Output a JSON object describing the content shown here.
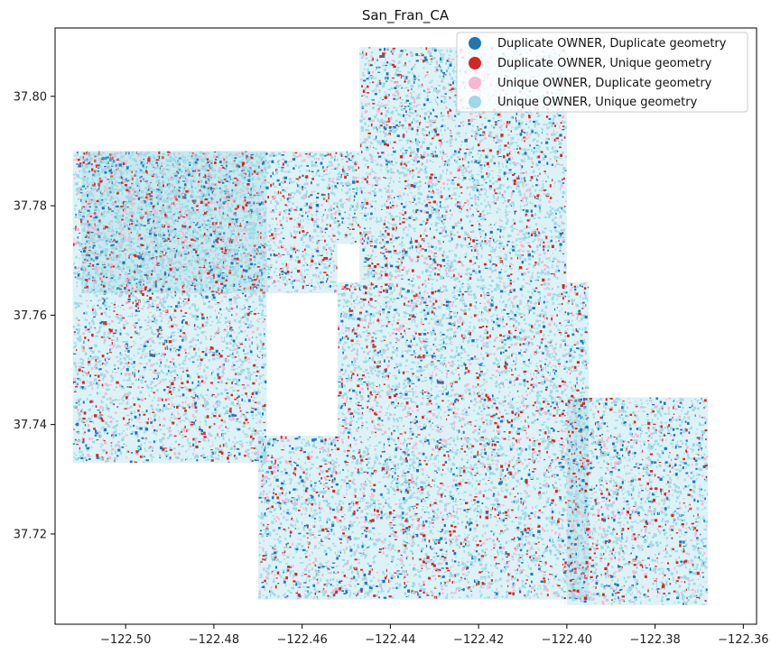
{
  "title": "San_Fran_CA",
  "colors": {
    "dup_owner_dup_geom": "#1f77b4",
    "dup_owner_unique_geom": "#d62728",
    "unique_owner_dup_geom": "#f7b6d2",
    "unique_owner_unique_geom": "#9edae5"
  },
  "legend": [
    {
      "label": "Duplicate OWNER, Duplicate geometry",
      "color_key": "dup_owner_dup_geom"
    },
    {
      "label": "Duplicate OWNER, Unique geometry",
      "color_key": "dup_owner_unique_geom"
    },
    {
      "label": "Unique OWNER, Duplicate geometry",
      "color_key": "unique_owner_dup_geom"
    },
    {
      "label": "Unique OWNER, Unique geometry",
      "color_key": "unique_owner_unique_geom"
    }
  ],
  "axes": {
    "x_ticks": [
      "−122.50",
      "−122.48",
      "−122.46",
      "−122.44",
      "−122.42",
      "−122.40",
      "−122.38",
      "−122.36"
    ],
    "x_values": [
      -122.5,
      -122.48,
      -122.46,
      -122.44,
      -122.42,
      -122.4,
      -122.38,
      -122.36
    ],
    "y_ticks": [
      "37.72",
      "37.74",
      "37.76",
      "37.78",
      "37.80"
    ],
    "y_values": [
      37.72,
      37.74,
      37.76,
      37.78,
      37.8
    ],
    "xlim": [
      -122.516,
      -122.357
    ],
    "ylim": [
      37.7035,
      37.8125
    ]
  },
  "map_regions": [
    {
      "name": "west",
      "lon": [
        -122.512,
        -122.468
      ],
      "lat": [
        37.733,
        37.79
      ]
    },
    {
      "name": "golden-gate-park-strip",
      "lon": [
        -122.51,
        -122.452
      ],
      "lat": [
        37.764,
        37.773
      ]
    },
    {
      "name": "richmond",
      "lon": [
        -122.51,
        -122.447
      ],
      "lat": [
        37.773,
        37.79
      ]
    },
    {
      "name": "north-east",
      "lon": [
        -122.447,
        -122.4
      ],
      "lat": [
        37.766,
        37.809
      ]
    },
    {
      "name": "central",
      "lon": [
        -122.452,
        -122.395
      ],
      "lat": [
        37.738,
        37.766
      ]
    },
    {
      "name": "south",
      "lon": [
        -122.47,
        -122.395
      ],
      "lat": [
        37.708,
        37.738
      ]
    },
    {
      "name": "south-east",
      "lon": [
        -122.4,
        -122.368
      ],
      "lat": [
        37.707,
        37.745
      ]
    }
  ]
}
